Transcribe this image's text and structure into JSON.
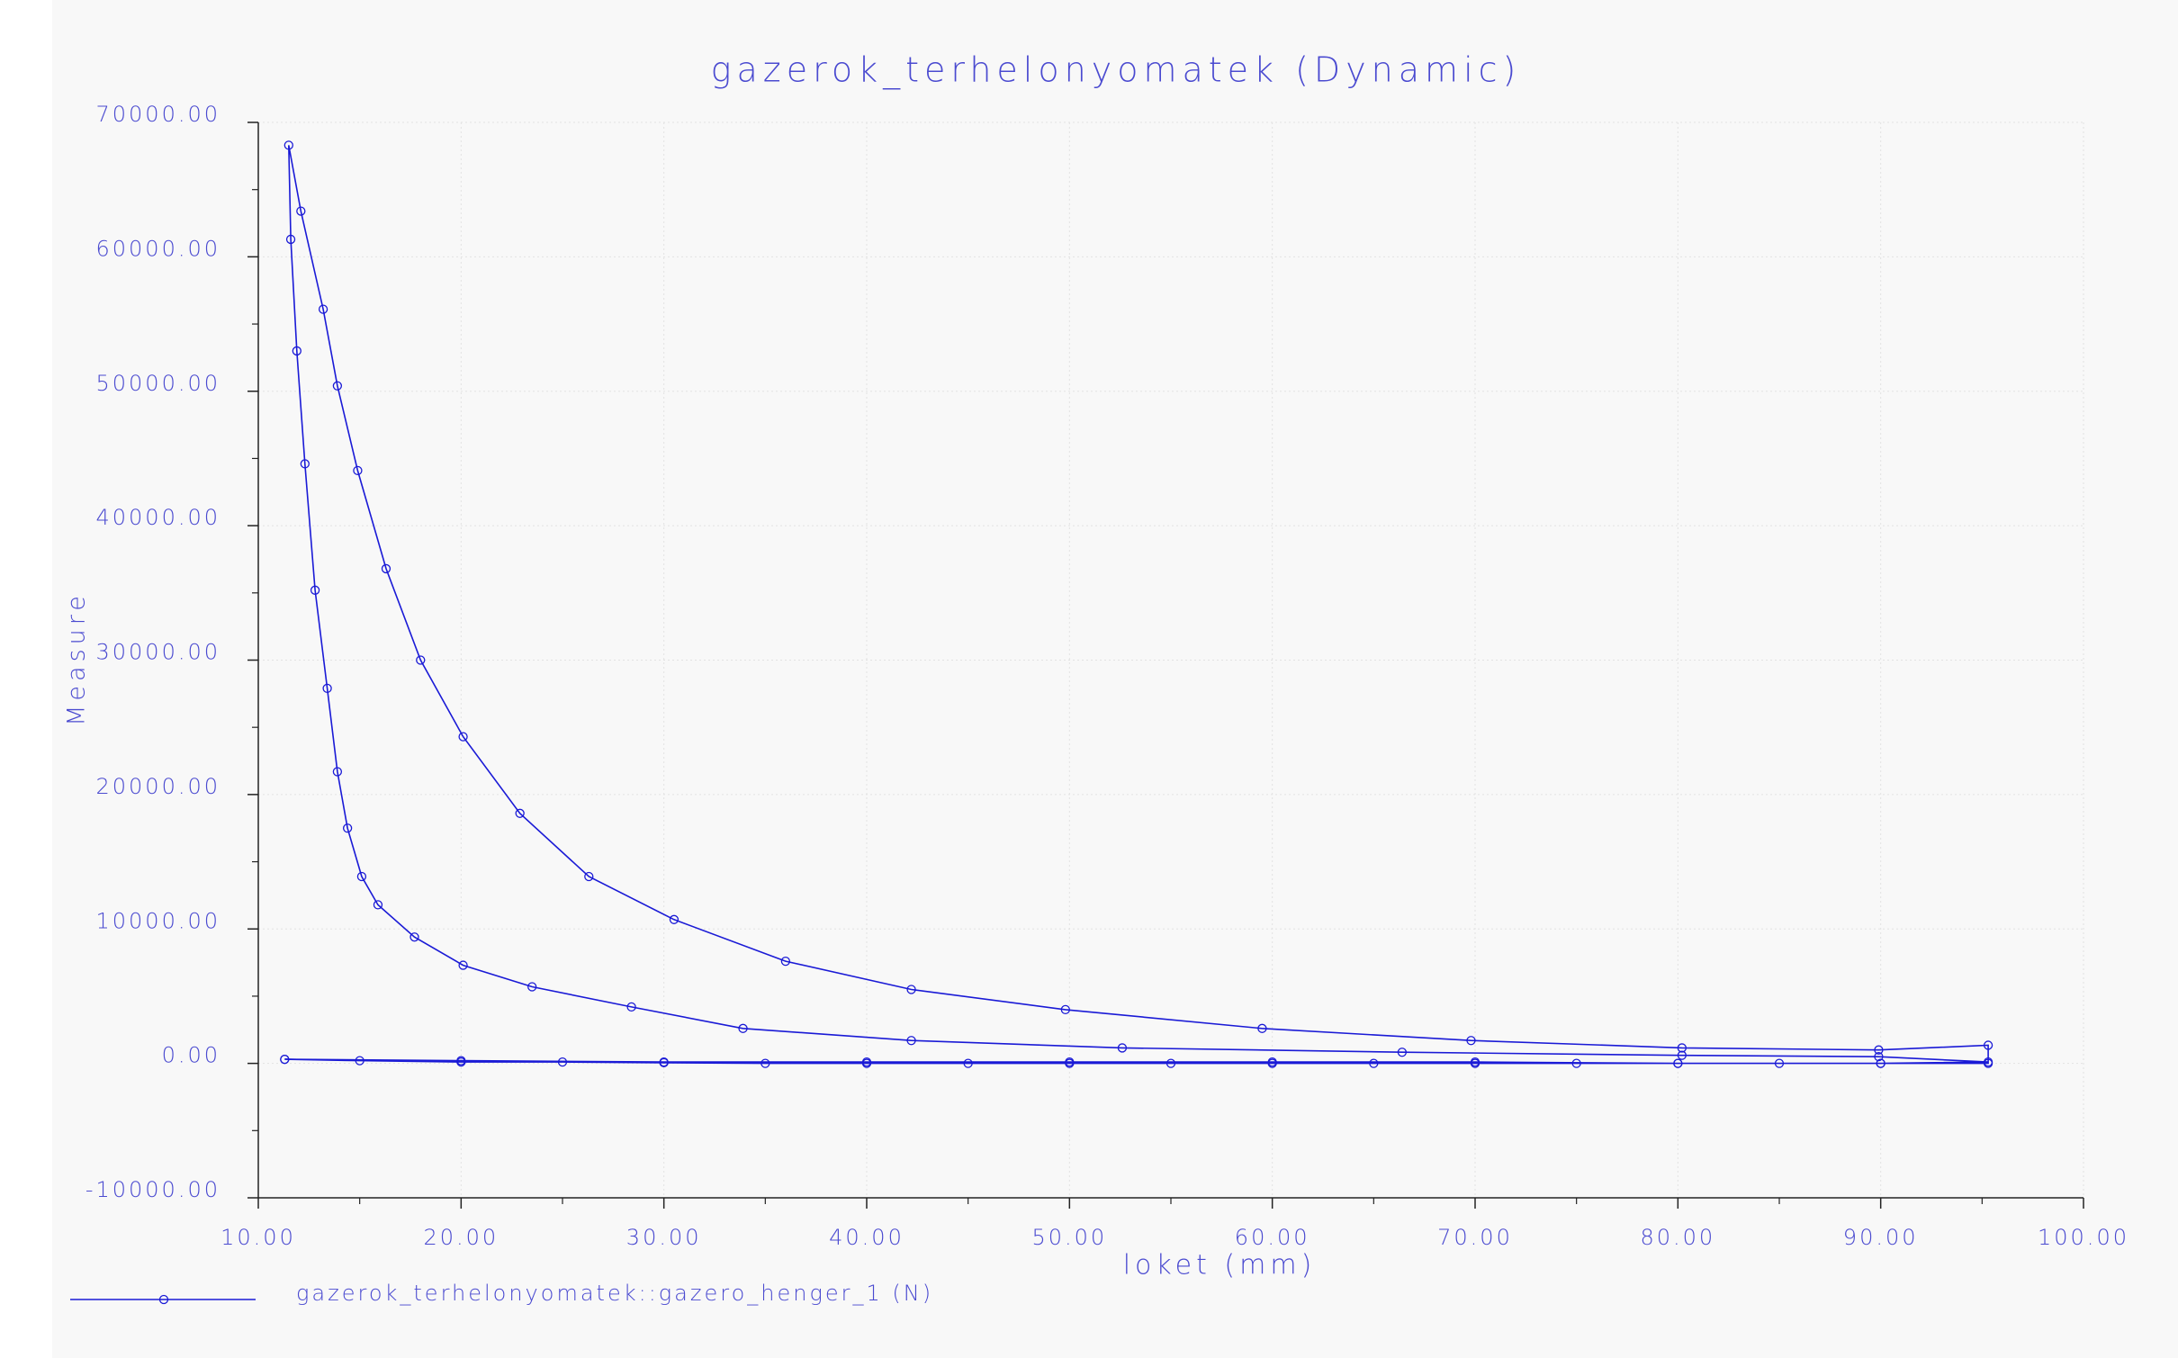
{
  "chart_data": {
    "type": "line",
    "title": "gazerok_terhelonyomatek (Dynamic)",
    "x_label": "loket (mm)",
    "y_label": "Measure",
    "series": [
      {
        "name": "gazerok_terhelonyomatek::gazero_henger_1 (N)",
        "color": "#1a1ad6",
        "marker": "circle",
        "x": [
          11.3,
          15,
          20,
          25,
          30,
          35,
          40,
          45,
          50,
          55,
          60,
          65,
          70,
          75,
          80,
          85,
          90,
          95.3,
          89.9,
          80.2,
          66.4,
          52.6,
          42.2,
          33.9,
          28.4,
          23.5,
          20.1,
          17.7,
          15.9,
          15.1,
          14.4,
          13.9,
          13.4,
          12.8,
          12.3,
          11.9,
          11.6,
          11.5,
          12.1,
          13.2,
          13.9,
          14.9,
          16.3,
          18.0,
          20.1,
          22.9,
          26.3,
          30.5,
          36.0,
          42.2,
          49.8,
          59.5,
          69.8,
          80.2,
          89.9,
          95.3,
          95.3,
          90,
          80,
          70,
          60,
          50,
          40,
          30,
          20,
          11.3
        ],
        "values": [
          300,
          200,
          100,
          100,
          50,
          0,
          0,
          0,
          0,
          0,
          0,
          0,
          0,
          0,
          0,
          0,
          0,
          100,
          500,
          600,
          830,
          1150,
          1700,
          2600,
          4200,
          5700,
          7300,
          9400,
          11800,
          13900,
          17500,
          21700,
          27900,
          35200,
          44600,
          53000,
          61300,
          68300,
          63400,
          56100,
          50400,
          44100,
          36800,
          30000,
          24300,
          18600,
          13900,
          10700,
          7600,
          5500,
          4000,
          2600,
          1700,
          1150,
          1000,
          1350,
          0,
          0,
          0,
          100,
          100,
          100,
          100,
          100,
          200,
          300
        ]
      }
    ],
    "xlim": [
      10,
      100
    ],
    "ylim": [
      -10000,
      70000
    ],
    "xticks": [
      {
        "value": 10,
        "label": "10.00"
      },
      {
        "value": 20,
        "label": "20.00"
      },
      {
        "value": 30,
        "label": "30.00"
      },
      {
        "value": 40,
        "label": "40.00"
      },
      {
        "value": 50,
        "label": "50.00"
      },
      {
        "value": 60,
        "label": "60.00"
      },
      {
        "value": 70,
        "label": "70.00"
      },
      {
        "value": 80,
        "label": "80.00"
      },
      {
        "value": 90,
        "label": "90.00"
      },
      {
        "value": 100,
        "label": "100.00"
      }
    ],
    "yticks": [
      {
        "value": -10000,
        "label": "-10000.00"
      },
      {
        "value": 0,
        "label": "0.00"
      },
      {
        "value": 10000,
        "label": "10000.00"
      },
      {
        "value": 20000,
        "label": "20000.00"
      },
      {
        "value": 30000,
        "label": "30000.00"
      },
      {
        "value": 40000,
        "label": "40000.00"
      },
      {
        "value": 50000,
        "label": "50000.00"
      },
      {
        "value": 60000,
        "label": "60000.00"
      },
      {
        "value": 70000,
        "label": "70000.00"
      }
    ],
    "grid": true
  }
}
